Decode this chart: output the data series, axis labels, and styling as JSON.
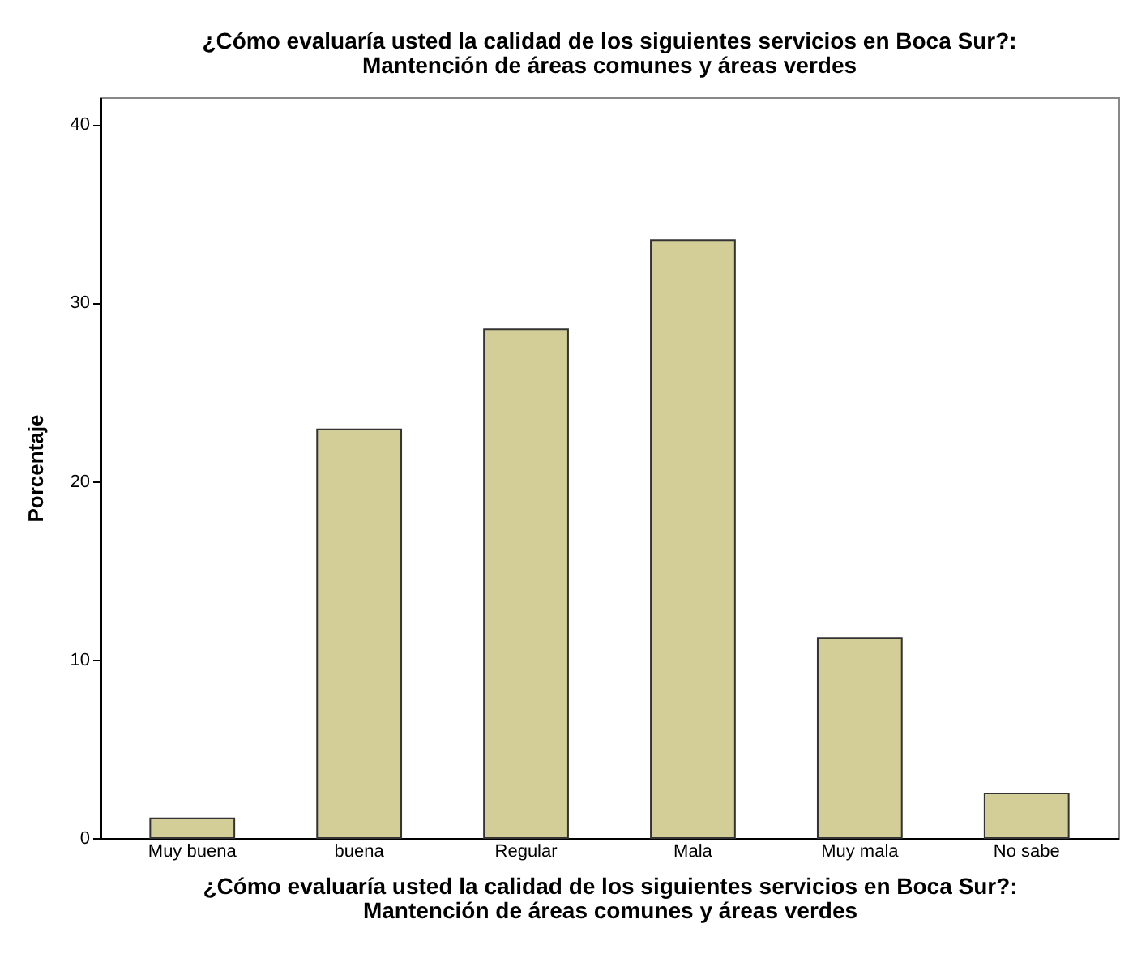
{
  "chart_data": {
    "type": "bar",
    "title": "¿Cómo evaluaría usted la calidad de los siguientes servicios en Boca Sur?:\nMantención de áreas comunes y áreas verdes",
    "xlabel": "¿Cómo evaluaría usted la calidad de los siguientes servicios en Boca Sur?:\nMantención de áreas comunes y áreas verdes",
    "ylabel": "Porcentaje",
    "categories": [
      "Muy buena",
      "buena",
      "Regular",
      "Mala",
      "Muy mala",
      "No sabe"
    ],
    "values": [
      1.1,
      22.9,
      28.5,
      33.5,
      11.2,
      2.5
    ],
    "color": "#d3ce97",
    "ylim": [
      0,
      41.5
    ],
    "yticks": [
      0,
      10,
      20,
      30,
      40
    ],
    "grid": false
  }
}
